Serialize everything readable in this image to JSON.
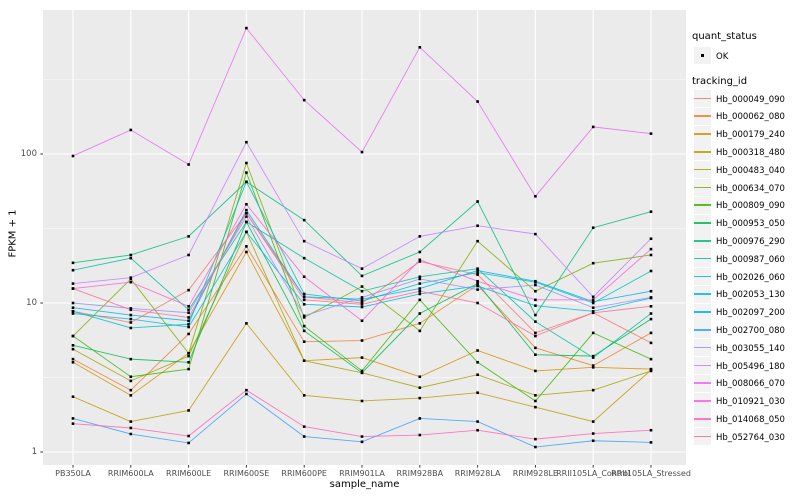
{
  "chart_data": {
    "type": "line",
    "title": "",
    "xlabel": "sample_name",
    "ylabel": "FPKM + 1",
    "x_categories": [
      "PB350LA",
      "RRIM600LA",
      "RRIM600LE",
      "RRIM600SE",
      "RRIM600PE",
      "RRIM901LA",
      "RRIM928BA",
      "RRIM928LA",
      "RRIM928LE",
      "RRII105LA_Control",
      "RRII105LA_Stressed"
    ],
    "y_scale": "log10",
    "y_major_ticks": [
      1,
      10,
      100
    ],
    "y_minor_gridlines": [
      3.162,
      31.62,
      316.2
    ],
    "ylim": [
      0.85,
      900
    ],
    "panel_bg": "#EBEBEB",
    "gridline_color": "#FFFFFF",
    "point_color": "#000000",
    "point_shape": "square",
    "legend_position": "right",
    "series": [
      {
        "tracking_id": "Hb_000049_090",
        "quant_status": "OK",
        "color": "#F8766D",
        "values": [
          8.8,
          7.4,
          12.2,
          40,
          11,
          10,
          19,
          15.5,
          6.3,
          8.6,
          5.4
        ]
      },
      {
        "tracking_id": "Hb_000062_080",
        "quant_status": "OK",
        "color": "#EA8331",
        "values": [
          4.2,
          2.6,
          6.2,
          24,
          5.5,
          5.6,
          7.3,
          13.2,
          5.0,
          3.8,
          6.3
        ]
      },
      {
        "tracking_id": "Hb_000179_240",
        "quant_status": "OK",
        "color": "#D89000",
        "values": [
          4.0,
          2.4,
          4.6,
          22,
          4.1,
          4.3,
          3.2,
          4.8,
          3.5,
          3.7,
          3.6
        ]
      },
      {
        "tracking_id": "Hb_000318_480",
        "quant_status": "OK",
        "color": "#C09B00",
        "values": [
          2.35,
          1.6,
          1.9,
          7.3,
          2.4,
          2.2,
          2.3,
          2.5,
          2.0,
          1.6,
          3.55
        ]
      },
      {
        "tracking_id": "Hb_000483_040",
        "quant_status": "OK",
        "color": "#A3A500",
        "values": [
          4.9,
          3.0,
          4.4,
          30,
          4.1,
          3.4,
          2.7,
          3.3,
          2.4,
          2.6,
          3.5
        ]
      },
      {
        "tracking_id": "Hb_000634_070",
        "quant_status": "OK",
        "color": "#7CAE00",
        "values": [
          6.0,
          14.5,
          4.6,
          87,
          8.0,
          12.9,
          6.5,
          26,
          12,
          18.5,
          21
        ]
      },
      {
        "tracking_id": "Hb_000809_090",
        "quant_status": "OK",
        "color": "#39B600",
        "values": [
          6.0,
          3.2,
          3.6,
          75,
          7.0,
          3.5,
          10.5,
          4.0,
          2.2,
          6.3,
          4.2
        ]
      },
      {
        "tracking_id": "Hb_000953_050",
        "quant_status": "OK",
        "color": "#00BB4E",
        "values": [
          5.2,
          4.2,
          4.0,
          35,
          6.5,
          3.4,
          8.5,
          13.5,
          4.5,
          4.4,
          7.8
        ]
      },
      {
        "tracking_id": "Hb_000976_290",
        "quant_status": "OK",
        "color": "#00BF7D",
        "values": [
          18.6,
          21,
          28,
          65,
          36,
          15.2,
          22,
          48,
          8.3,
          32,
          41
        ]
      },
      {
        "tracking_id": "Hb_000987_060",
        "quant_status": "OK",
        "color": "#00C1A3",
        "values": [
          16.6,
          20,
          9.0,
          35,
          20,
          12,
          15,
          17,
          7.5,
          4.3,
          8.5
        ]
      },
      {
        "tracking_id": "Hb_002026_060",
        "quant_status": "OK",
        "color": "#00BFC4",
        "values": [
          8.8,
          6.8,
          7.2,
          65,
          11.5,
          10.3,
          13.5,
          16,
          13.8,
          10,
          16.4
        ]
      },
      {
        "tracking_id": "Hb_002053_130",
        "quant_status": "OK",
        "color": "#00BAE0",
        "values": [
          8.5,
          7.8,
          6.9,
          30,
          9.8,
          9.4,
          11.5,
          13,
          9.6,
          8.8,
          10.8
        ]
      },
      {
        "tracking_id": "Hb_002097_200",
        "quant_status": "OK",
        "color": "#00B0F6",
        "values": [
          9.3,
          8.3,
          7.6,
          42,
          11,
          10.6,
          12.5,
          16.5,
          14,
          10.2,
          12
        ]
      },
      {
        "tracking_id": "Hb_002700_080",
        "quant_status": "OK",
        "color": "#35A2FF",
        "values": [
          1.68,
          1.32,
          1.15,
          2.45,
          1.27,
          1.17,
          1.68,
          1.6,
          1.08,
          1.19,
          1.16
        ]
      },
      {
        "tracking_id": "Hb_003055_140",
        "quant_status": "OK",
        "color": "#9590FF",
        "values": [
          10,
          9.2,
          8.6,
          38,
          8.2,
          10.9,
          14.5,
          12.3,
          13.2,
          9.3,
          10.9
        ]
      },
      {
        "tracking_id": "Hb_005496_180",
        "quant_status": "OK",
        "color": "#C77CFF",
        "values": [
          13.5,
          14.8,
          21,
          120,
          26,
          17,
          28,
          33,
          29,
          11,
          27
        ]
      },
      {
        "tracking_id": "Hb_008066_070",
        "quant_status": "OK",
        "color": "#E76BF3",
        "values": [
          97,
          145,
          85,
          700,
          230,
          103,
          520,
          225,
          52,
          152,
          137
        ]
      },
      {
        "tracking_id": "Hb_010921_030",
        "quant_status": "OK",
        "color": "#FA62DB",
        "values": [
          12.5,
          13.8,
          9.5,
          46,
          15,
          7.6,
          19.5,
          14,
          10.5,
          10.5,
          23
        ]
      },
      {
        "tracking_id": "Hb_014068_050",
        "quant_status": "OK",
        "color": "#FF62BC",
        "values": [
          1.55,
          1.45,
          1.28,
          2.6,
          1.48,
          1.27,
          1.3,
          1.4,
          1.22,
          1.33,
          1.4
        ]
      },
      {
        "tracking_id": "Hb_052764_030",
        "quant_status": "OK",
        "color": "#FF6A98",
        "values": [
          12.5,
          9.0,
          8.0,
          40,
          10.5,
          9.8,
          12,
          10,
          6.0,
          8.6,
          9.5
        ]
      }
    ]
  },
  "legend": {
    "quant_status": {
      "title": "quant_status",
      "items": [
        {
          "label": "OK"
        }
      ]
    },
    "tracking_id": {
      "title": "tracking_id"
    },
    "key_bg": "#F2F2F2"
  },
  "axis": {
    "tick_label_color": "#4D4D4D",
    "tick_color": "#333333"
  }
}
